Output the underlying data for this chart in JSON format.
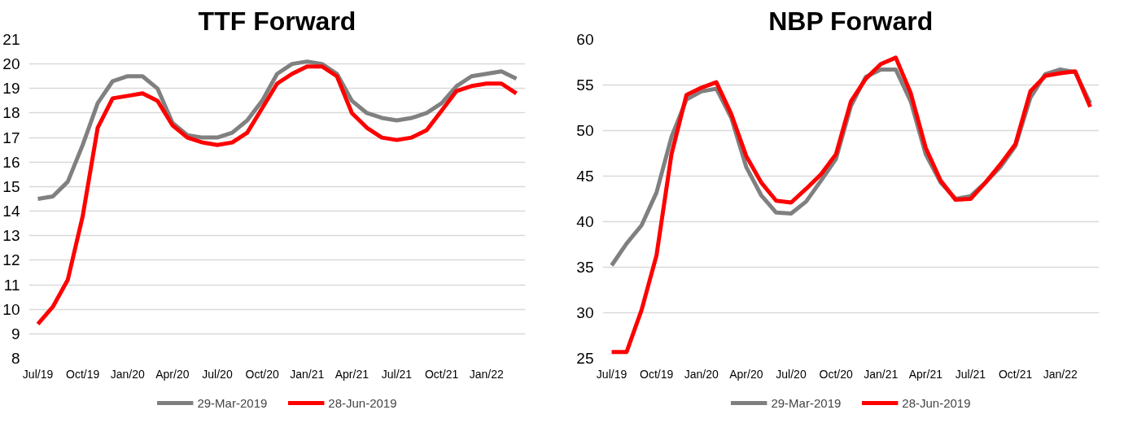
{
  "chart_data": [
    {
      "type": "line",
      "title": "TTF Forward",
      "categories": [
        "Jul/19",
        null,
        null,
        "Oct/19",
        null,
        null,
        "Jan/20",
        null,
        null,
        "Apr/20",
        null,
        null,
        "Jul/20",
        null,
        null,
        "Oct/20",
        null,
        null,
        "Jan/21",
        null,
        null,
        "Apr/21",
        null,
        null,
        "Jul/21",
        null,
        null,
        "Oct/21",
        null,
        null,
        "Jan/22",
        null,
        null
      ],
      "series": [
        {
          "name": "29-Mar-2019",
          "color": "#808080",
          "values": [
            14.5,
            14.6,
            15.2,
            16.7,
            18.4,
            19.3,
            19.5,
            19.5,
            19.0,
            17.6,
            17.1,
            17.0,
            17.0,
            17.2,
            17.7,
            18.5,
            19.6,
            20.0,
            20.1,
            20.0,
            19.6,
            18.5,
            18.0,
            17.8,
            17.7,
            17.8,
            18.0,
            18.4,
            19.1,
            19.5,
            19.6,
            19.7,
            19.4
          ]
        },
        {
          "name": "28-Jun-2019",
          "color": "#ff0000",
          "values": [
            9.4,
            10.1,
            11.2,
            13.8,
            17.4,
            18.6,
            18.7,
            18.8,
            18.5,
            17.5,
            17.0,
            16.8,
            16.7,
            16.8,
            17.2,
            18.2,
            19.2,
            19.6,
            19.9,
            19.9,
            19.5,
            18.0,
            17.4,
            17.0,
            16.9,
            17.0,
            17.3,
            18.1,
            18.9,
            19.1,
            19.2,
            19.2,
            18.8
          ]
        }
      ],
      "ylim": [
        8,
        21
      ],
      "yticks": [
        8,
        9,
        10,
        11,
        12,
        13,
        14,
        15,
        16,
        17,
        18,
        19,
        20,
        21
      ],
      "grid": "y",
      "legend": "bottom",
      "line_style": "solid",
      "marker": "none"
    },
    {
      "type": "line",
      "title": "NBP Forward",
      "categories": [
        "Jul/19",
        null,
        null,
        "Oct/19",
        null,
        null,
        "Jan/20",
        null,
        null,
        "Apr/20",
        null,
        null,
        "Jul/20",
        null,
        null,
        "Oct/20",
        null,
        null,
        "Jan/21",
        null,
        null,
        "Apr/21",
        null,
        null,
        "Jul/21",
        null,
        null,
        "Oct/21",
        null,
        null,
        "Jan/22",
        null,
        null
      ],
      "series": [
        {
          "name": "29-Mar-2019",
          "color": "#808080",
          "values": [
            35.2,
            37.6,
            39.6,
            43.2,
            49.3,
            53.4,
            54.3,
            54.6,
            51.4,
            46.0,
            42.9,
            41.0,
            40.9,
            42.2,
            44.5,
            46.9,
            52.7,
            55.9,
            56.7,
            56.7,
            53.2,
            47.4,
            44.3,
            42.5,
            42.8,
            44.3,
            46.0,
            48.3,
            53.6,
            56.2,
            56.7,
            56.4,
            53.0
          ]
        },
        {
          "name": "28-Jun-2019",
          "color": "#ff0000",
          "values": [
            25.7,
            25.7,
            30.3,
            36.3,
            47.4,
            53.9,
            54.7,
            55.3,
            51.8,
            47.2,
            44.3,
            42.3,
            42.1,
            43.6,
            45.2,
            47.4,
            53.2,
            55.7,
            57.3,
            58.0,
            54.1,
            48.1,
            44.5,
            42.4,
            42.5,
            44.3,
            46.3,
            48.5,
            54.3,
            56.0,
            56.3,
            56.5,
            52.6
          ]
        }
      ],
      "ylim": [
        25,
        60
      ],
      "yticks": [
        25,
        30,
        35,
        40,
        45,
        50,
        55,
        60
      ],
      "grid": "y",
      "legend": "bottom",
      "line_style": "solid",
      "marker": "none"
    }
  ]
}
